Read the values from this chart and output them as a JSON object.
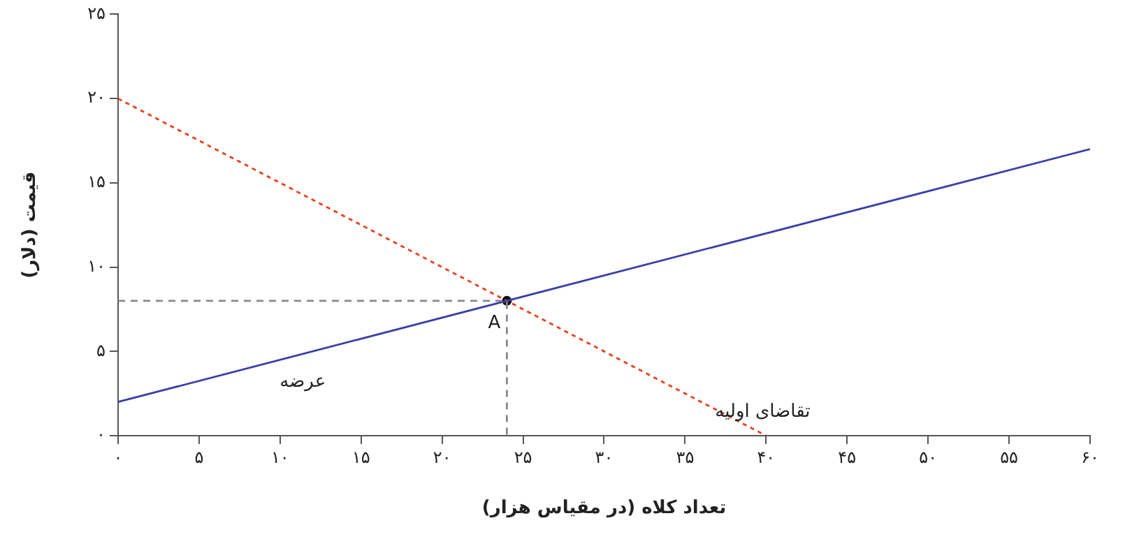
{
  "chart_data": {
    "type": "line",
    "xlabel": "تعداد کلاه (در مقیاس هزار)",
    "ylabel": "قیمت (دلار)",
    "xlim": [
      0,
      60
    ],
    "ylim": [
      0,
      25
    ],
    "xticks": [
      {
        "value": 0,
        "label": "۰"
      },
      {
        "value": 5,
        "label": "۵"
      },
      {
        "value": 10,
        "label": "۱۰"
      },
      {
        "value": 15,
        "label": "۱۵"
      },
      {
        "value": 20,
        "label": "۲۰"
      },
      {
        "value": 25,
        "label": "۲۵"
      },
      {
        "value": 30,
        "label": "۳۰"
      },
      {
        "value": 35,
        "label": "۳۵"
      },
      {
        "value": 40,
        "label": "۴۰"
      },
      {
        "value": 45,
        "label": "۴۵"
      },
      {
        "value": 50,
        "label": "۵۰"
      },
      {
        "value": 55,
        "label": "۵۵"
      },
      {
        "value": 60,
        "label": "۶۰"
      }
    ],
    "yticks": [
      {
        "value": 0,
        "label": "۰"
      },
      {
        "value": 5,
        "label": "۵"
      },
      {
        "value": 10,
        "label": "۱۰"
      },
      {
        "value": 15,
        "label": "۱۵"
      },
      {
        "value": 20,
        "label": "۲۰"
      },
      {
        "value": 25,
        "label": "۲۵"
      }
    ],
    "grid": false,
    "legend": false,
    "series": [
      {
        "color": "#888888",
        "line_style": "dashed",
        "x": [
          0,
          24,
          24
        ],
        "values": [
          8,
          8,
          0
        ]
      },
      {
        "name": "عرضه",
        "color": "#3b3fa8",
        "line_style": "solid",
        "x": [
          0,
          60
        ],
        "values": [
          2,
          17
        ]
      },
      {
        "name": "تقاضای اولیه",
        "color": "#e8401c",
        "line_style": "dotted",
        "x": [
          0,
          40
        ],
        "values": [
          20,
          0
        ]
      },
      {
        "type": "scatter",
        "color": "#111111",
        "marker": "circle",
        "x": [
          24
        ],
        "values": [
          8
        ]
      }
    ],
    "annotations": [
      {
        "text": "A",
        "x": 24,
        "y": 8
      }
    ]
  }
}
